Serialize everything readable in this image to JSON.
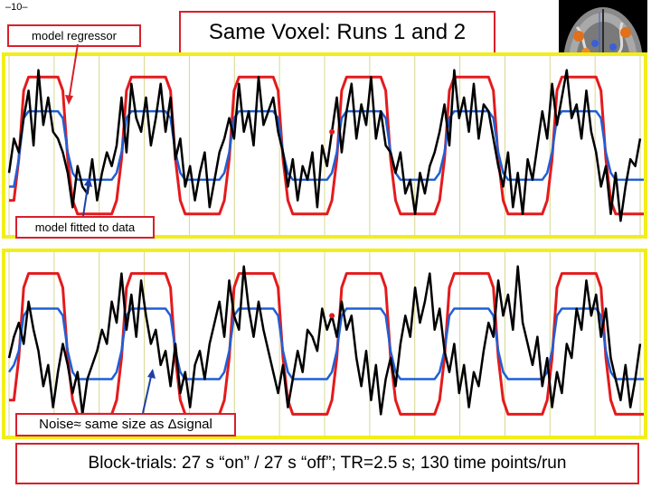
{
  "page_number": "–10–",
  "title": "Same Voxel: Runs 1 and 2",
  "labels": {
    "model_regressor": "model regressor",
    "model_fitted": "model fitted to data",
    "noise_prefix": "Noise",
    "approx_symbol": "≈",
    "noise_middle": " same size as ",
    "delta_symbol": "Δ",
    "noise_suffix": "signal"
  },
  "caption": "Block-trials: 27 s “on” / 27 s “off”; TR=2.5 s; 130 time points/run",
  "colors": {
    "regressor": "#e41a1c",
    "fitted": "#1f5fd6",
    "data": "#000000",
    "grid": "#d8d890",
    "panel_border": "#f2ee1a",
    "label_border": "#d8202a"
  },
  "chart_data": [
    {
      "type": "line",
      "run": 1,
      "n_points": 130,
      "block_on_s": 27,
      "block_off_s": 27,
      "tr_s": 2.5,
      "grid": true,
      "series": [
        {
          "key": "regressor",
          "role": "model regressor",
          "color": "#e41a1c",
          "values": [
            0.1,
            0.1,
            0.4,
            0.9,
            1,
            1,
            1,
            1,
            1,
            1,
            1,
            0.9,
            0.4,
            0.1,
            0,
            0,
            0,
            0,
            0,
            0,
            0,
            0,
            0.1,
            0.4,
            0.9,
            1,
            1,
            1,
            1,
            1,
            1,
            1,
            1,
            0.9,
            0.4,
            0.1,
            0,
            0,
            0,
            0,
            0,
            0,
            0,
            0,
            0.1,
            0.4,
            0.9,
            1,
            1,
            1,
            1,
            1,
            1,
            1,
            1,
            0.9,
            0.4,
            0.1,
            0,
            0,
            0,
            0,
            0,
            0,
            0,
            0,
            0.1,
            0.4,
            0.9,
            1,
            1,
            1,
            1,
            1,
            1,
            1,
            1,
            0.9,
            0.4,
            0.1,
            0,
            0,
            0,
            0,
            0,
            0,
            0,
            0,
            0.1,
            0.4,
            0.9,
            1,
            1,
            1,
            1,
            1,
            1,
            1,
            1,
            0.9,
            0.4,
            0.1,
            0,
            0,
            0,
            0,
            0,
            0,
            0,
            0,
            0.1,
            0.4,
            0.9,
            1,
            1,
            1,
            1,
            1,
            1,
            1,
            1,
            0.9,
            0.4,
            0.1,
            0,
            0,
            0,
            0,
            0,
            0,
            0
          ]
        },
        {
          "key": "fitted",
          "role": "model fitted to data",
          "color": "#1f5fd6",
          "values": [
            0.2,
            0.2,
            0.4,
            0.7,
            0.75,
            0.75,
            0.75,
            0.75,
            0.75,
            0.75,
            0.75,
            0.7,
            0.45,
            0.3,
            0.25,
            0.25,
            0.25,
            0.25,
            0.25,
            0.25,
            0.25,
            0.25,
            0.3,
            0.45,
            0.7,
            0.75,
            0.75,
            0.75,
            0.75,
            0.75,
            0.75,
            0.75,
            0.75,
            0.7,
            0.45,
            0.3,
            0.25,
            0.25,
            0.25,
            0.25,
            0.25,
            0.25,
            0.25,
            0.25,
            0.3,
            0.45,
            0.7,
            0.75,
            0.75,
            0.75,
            0.75,
            0.75,
            0.75,
            0.75,
            0.75,
            0.7,
            0.45,
            0.3,
            0.25,
            0.25,
            0.25,
            0.25,
            0.25,
            0.25,
            0.25,
            0.25,
            0.3,
            0.45,
            0.7,
            0.75,
            0.75,
            0.75,
            0.75,
            0.75,
            0.75,
            0.75,
            0.75,
            0.7,
            0.45,
            0.3,
            0.25,
            0.25,
            0.25,
            0.25,
            0.25,
            0.25,
            0.25,
            0.25,
            0.3,
            0.45,
            0.7,
            0.75,
            0.75,
            0.75,
            0.75,
            0.75,
            0.75,
            0.75,
            0.75,
            0.7,
            0.45,
            0.3,
            0.25,
            0.25,
            0.25,
            0.25,
            0.25,
            0.25,
            0.25,
            0.25,
            0.3,
            0.45,
            0.7,
            0.75,
            0.75,
            0.75,
            0.75,
            0.75,
            0.75,
            0.75,
            0.75,
            0.7,
            0.45,
            0.3,
            0.25,
            0.25,
            0.25,
            0.25,
            0.25,
            0.25,
            0.25
          ]
        },
        {
          "key": "data",
          "role": "measured voxel data",
          "color": "#000000",
          "values": [
            0.3,
            0.55,
            0.45,
            0.7,
            0.9,
            0.5,
            1.05,
            0.65,
            0.85,
            0.6,
            0.55,
            0.45,
            0.3,
            0.05,
            0.35,
            0.2,
            0.15,
            0.4,
            0.1,
            0.3,
            0.45,
            0.35,
            0.5,
            0.85,
            0.45,
            0.95,
            0.7,
            0.6,
            0.85,
            0.5,
            0.7,
            0.95,
            0.6,
            0.85,
            0.4,
            0.55,
            0.2,
            0.35,
            0.1,
            0.3,
            0.45,
            0.05,
            0.25,
            0.45,
            0.55,
            0.7,
            0.55,
            0.95,
            0.6,
            0.75,
            0.5,
            1.0,
            0.65,
            0.75,
            0.85,
            0.6,
            0.45,
            0.2,
            0.4,
            0.1,
            0.35,
            0.25,
            0.45,
            0.05,
            0.5,
            0.35,
            0.6,
            0.85,
            0.45,
            0.75,
            0.95,
            0.55,
            0.8,
            0.65,
            1.0,
            0.55,
            0.75,
            0.5,
            0.45,
            0.3,
            0.45,
            0.15,
            0.25,
            0.0,
            0.3,
            0.15,
            0.35,
            0.45,
            0.6,
            0.8,
            0.5,
            1.05,
            0.7,
            0.85,
            0.6,
            0.95,
            0.55,
            0.8,
            0.75,
            0.55,
            0.35,
            0.2,
            0.45,
            0.05,
            0.3,
            0.0,
            0.4,
            0.25,
            0.5,
            0.75,
            0.55,
            0.95,
            0.65,
            0.85,
            1.05,
            0.7,
            0.8,
            0.55,
            0.9,
            0.6,
            0.45,
            0.2,
            0.35,
            0.0,
            0.3,
            -0.05,
            0.2,
            0.4,
            0.35,
            0.55
          ]
        }
      ]
    },
    {
      "type": "line",
      "run": 2,
      "n_points": 130,
      "block_on_s": 27,
      "block_off_s": 27,
      "tr_s": 2.5,
      "grid": true,
      "series": [
        {
          "key": "regressor",
          "role": "model regressor",
          "color": "#e41a1c",
          "values": [
            0.1,
            0.1,
            0.4,
            0.9,
            1,
            1,
            1,
            1,
            1,
            1,
            1,
            0.9,
            0.4,
            0.1,
            0,
            0,
            0,
            0,
            0,
            0,
            0,
            0,
            0.1,
            0.4,
            0.9,
            1,
            1,
            1,
            1,
            1,
            1,
            1,
            1,
            0.9,
            0.4,
            0.1,
            0,
            0,
            0,
            0,
            0,
            0,
            0,
            0,
            0.1,
            0.4,
            0.9,
            1,
            1,
            1,
            1,
            1,
            1,
            1,
            1,
            0.9,
            0.4,
            0.1,
            0,
            0,
            0,
            0,
            0,
            0,
            0,
            0,
            0.1,
            0.4,
            0.9,
            1,
            1,
            1,
            1,
            1,
            1,
            1,
            1,
            0.9,
            0.4,
            0.1,
            0,
            0,
            0,
            0,
            0,
            0,
            0,
            0,
            0.1,
            0.4,
            0.9,
            1,
            1,
            1,
            1,
            1,
            1,
            1,
            1,
            0.9,
            0.4,
            0.1,
            0,
            0,
            0,
            0,
            0,
            0,
            0,
            0,
            0.1,
            0.4,
            0.9,
            1,
            1,
            1,
            1,
            1,
            1,
            1,
            1,
            0.9,
            0.4,
            0.1,
            0,
            0,
            0,
            0,
            0,
            0,
            0
          ]
        },
        {
          "key": "fitted",
          "role": "model fitted to data",
          "color": "#1f5fd6",
          "values": [
            0.3,
            0.35,
            0.45,
            0.7,
            0.75,
            0.75,
            0.75,
            0.75,
            0.75,
            0.75,
            0.75,
            0.7,
            0.45,
            0.3,
            0.25,
            0.25,
            0.25,
            0.25,
            0.25,
            0.25,
            0.25,
            0.25,
            0.3,
            0.45,
            0.7,
            0.75,
            0.75,
            0.75,
            0.75,
            0.75,
            0.75,
            0.75,
            0.75,
            0.7,
            0.45,
            0.3,
            0.25,
            0.25,
            0.25,
            0.25,
            0.25,
            0.25,
            0.25,
            0.25,
            0.3,
            0.45,
            0.7,
            0.75,
            0.75,
            0.75,
            0.75,
            0.75,
            0.75,
            0.75,
            0.75,
            0.7,
            0.45,
            0.3,
            0.25,
            0.25,
            0.25,
            0.25,
            0.25,
            0.25,
            0.25,
            0.25,
            0.3,
            0.45,
            0.7,
            0.75,
            0.75,
            0.75,
            0.75,
            0.75,
            0.75,
            0.75,
            0.75,
            0.7,
            0.45,
            0.3,
            0.25,
            0.25,
            0.25,
            0.25,
            0.25,
            0.25,
            0.25,
            0.25,
            0.3,
            0.45,
            0.7,
            0.75,
            0.75,
            0.75,
            0.75,
            0.75,
            0.75,
            0.75,
            0.75,
            0.7,
            0.45,
            0.3,
            0.25,
            0.25,
            0.25,
            0.25,
            0.25,
            0.25,
            0.25,
            0.25,
            0.3,
            0.45,
            0.7,
            0.75,
            0.75,
            0.75,
            0.75,
            0.75,
            0.75,
            0.75,
            0.75,
            0.7,
            0.45,
            0.3,
            0.25,
            0.25,
            0.25,
            0.25,
            0.25,
            0.25,
            0.25
          ]
        },
        {
          "key": "data",
          "role": "measured voxel data",
          "color": "#000000",
          "values": [
            0.4,
            0.55,
            0.65,
            0.5,
            0.8,
            0.6,
            0.45,
            0.2,
            0.35,
            0.05,
            0.3,
            0.5,
            0.35,
            0.15,
            0.3,
            0.0,
            0.25,
            0.35,
            0.45,
            0.6,
            0.5,
            0.8,
            0.65,
            1.0,
            0.6,
            0.85,
            0.55,
            0.95,
            0.7,
            0.5,
            0.6,
            0.35,
            0.45,
            0.2,
            0.5,
            0.15,
            0.3,
            0.05,
            0.35,
            0.45,
            0.25,
            0.5,
            0.65,
            0.8,
            0.55,
            0.95,
            0.7,
            0.6,
            1.05,
            0.75,
            0.55,
            0.8,
            0.6,
            0.45,
            0.3,
            0.15,
            0.35,
            0.05,
            0.25,
            0.45,
            0.3,
            0.6,
            0.55,
            0.45,
            0.75,
            0.6,
            0.7,
            0.55,
            0.8,
            0.6,
            0.7,
            0.4,
            0.2,
            0.45,
            0.1,
            0.35,
            0.0,
            0.25,
            0.4,
            0.2,
            0.5,
            0.7,
            0.55,
            0.9,
            0.65,
            0.8,
            1.0,
            0.6,
            0.75,
            0.45,
            0.3,
            0.5,
            0.15,
            0.35,
            0.05,
            0.3,
            0.2,
            0.45,
            0.65,
            0.55,
            0.95,
            0.7,
            0.85,
            0.6,
            1.05,
            0.65,
            0.5,
            0.35,
            0.55,
            0.2,
            0.4,
            0.05,
            0.3,
            0.15,
            0.5,
            0.4,
            0.75,
            0.6,
            0.95,
            0.7,
            0.85,
            0.55,
            0.75,
            0.4,
            0.25,
            0.1,
            0.35,
            0.05,
            0.25,
            0.5
          ]
        }
      ]
    }
  ]
}
